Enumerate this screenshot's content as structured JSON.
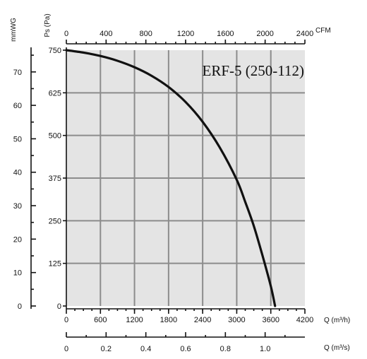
{
  "chart_data": {
    "type": "line",
    "title": "ERF-5 (250-112)",
    "xlabel": "Q (m³/h)",
    "ylabel": "Ps (Pa)",
    "xlim": [
      0,
      4200
    ],
    "ylim": [
      0,
      750
    ],
    "grid": true,
    "x_ticks": [
      "0",
      "600",
      "1200",
      "1800",
      "2400",
      "3000",
      "3600",
      "4200"
    ],
    "y_ticks": [
      "0",
      "125",
      "250",
      "375",
      "500",
      "625",
      "750"
    ],
    "secondary_axes": {
      "top": {
        "label": "CFM",
        "range": [
          0,
          2400
        ],
        "ticks": [
          "0",
          "400",
          "800",
          "1200",
          "1600",
          "2000",
          "2400"
        ]
      },
      "bottom2": {
        "label": "Q (m³/s)",
        "range": [
          0,
          1.2
        ],
        "ticks": [
          "0",
          "0.2",
          "0.4",
          "0.6",
          "0.8",
          "1.0"
        ]
      },
      "left2": {
        "label": "mmWG",
        "range": [
          0,
          76.5
        ],
        "ticks": [
          "0",
          "10",
          "20",
          "30",
          "40",
          "50",
          "60",
          "70"
        ]
      }
    },
    "series": [
      {
        "x": [
          0,
          300,
          600,
          900,
          1200,
          1500,
          1800,
          2100,
          2400,
          2700,
          3000,
          3150,
          3300,
          3450,
          3600,
          3675
        ],
        "y": [
          750,
          743,
          733,
          719,
          700,
          675,
          642,
          598,
          540,
          465,
          370,
          305,
          235,
          150,
          58,
          0
        ]
      }
    ]
  }
}
